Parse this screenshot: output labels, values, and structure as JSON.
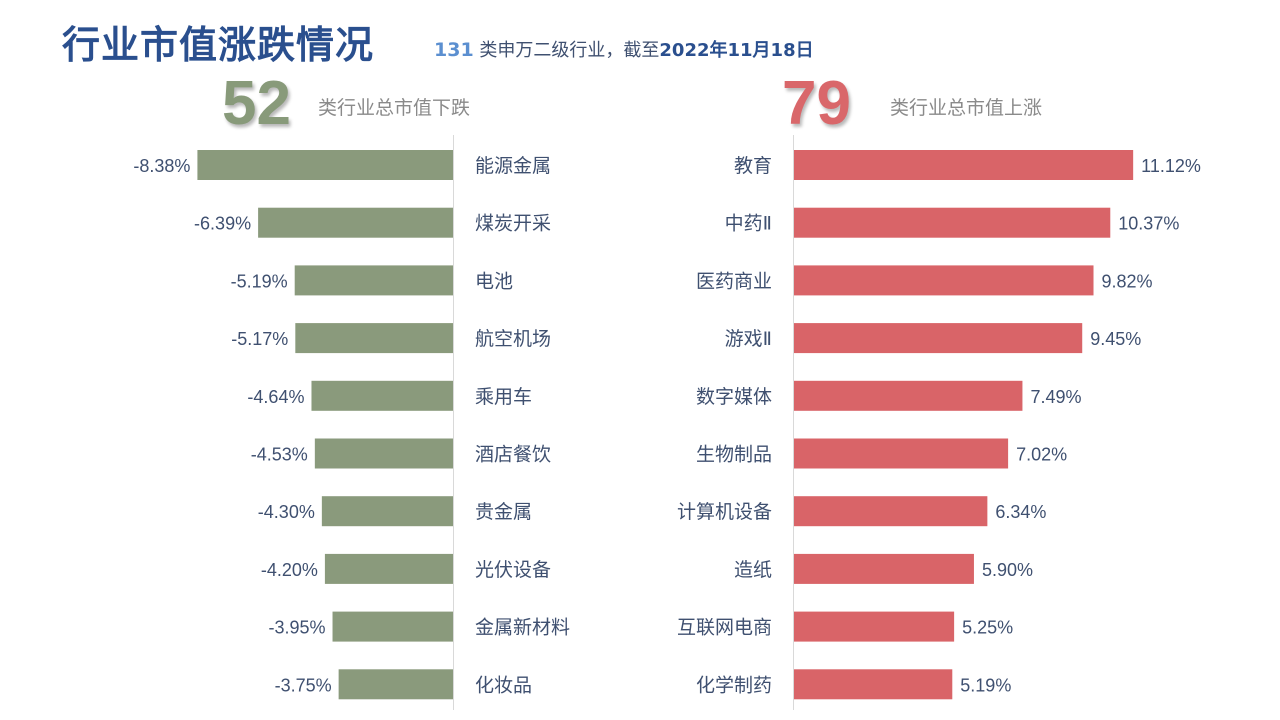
{
  "header": {
    "title": "行业市值涨跌情况",
    "subtitle_count": "131",
    "subtitle_text": " 类申万二级行业，截至",
    "subtitle_date": "2022年11月18日"
  },
  "summary": {
    "down_count": "52",
    "down_caption": "类行业总市值下跌",
    "up_count": "79",
    "up_caption": "类行业总市值上涨"
  },
  "colors": {
    "down_bar": "#8a9a7c",
    "up_bar": "#d96468",
    "title": "#2a4f8e",
    "label": "#3f5070"
  },
  "chart_data": [
    {
      "type": "bar",
      "orientation": "horizontal",
      "direction": "left",
      "unit": "%",
      "categories": [
        "能源金属",
        "煤炭开采",
        "电池",
        "航空机场",
        "乘用车",
        "酒店餐饮",
        "贵金属",
        "光伏设备",
        "金属新材料",
        "化妆品"
      ],
      "values": [
        -8.38,
        -6.39,
        -5.19,
        -5.17,
        -4.64,
        -4.53,
        -4.3,
        -4.2,
        -3.95,
        -3.75
      ],
      "labels": [
        "-8.38%",
        "-6.39%",
        "-5.19%",
        "-5.17%",
        "-4.64%",
        "-4.53%",
        "-4.30%",
        "-4.20%",
        "-3.95%",
        "-3.75%"
      ],
      "grid": false
    },
    {
      "type": "bar",
      "orientation": "horizontal",
      "direction": "right",
      "unit": "%",
      "categories": [
        "教育",
        "中药Ⅱ",
        "医药商业",
        "游戏Ⅱ",
        "数字媒体",
        "生物制品",
        "计算机设备",
        "造纸",
        "互联网电商",
        "化学制药"
      ],
      "values": [
        11.12,
        10.37,
        9.82,
        9.45,
        7.49,
        7.02,
        6.34,
        5.9,
        5.25,
        5.19
      ],
      "labels": [
        "11.12%",
        "10.37%",
        "9.82%",
        "9.45%",
        "7.49%",
        "7.02%",
        "6.34%",
        "5.90%",
        "5.25%",
        "5.19%"
      ],
      "grid": false
    }
  ]
}
